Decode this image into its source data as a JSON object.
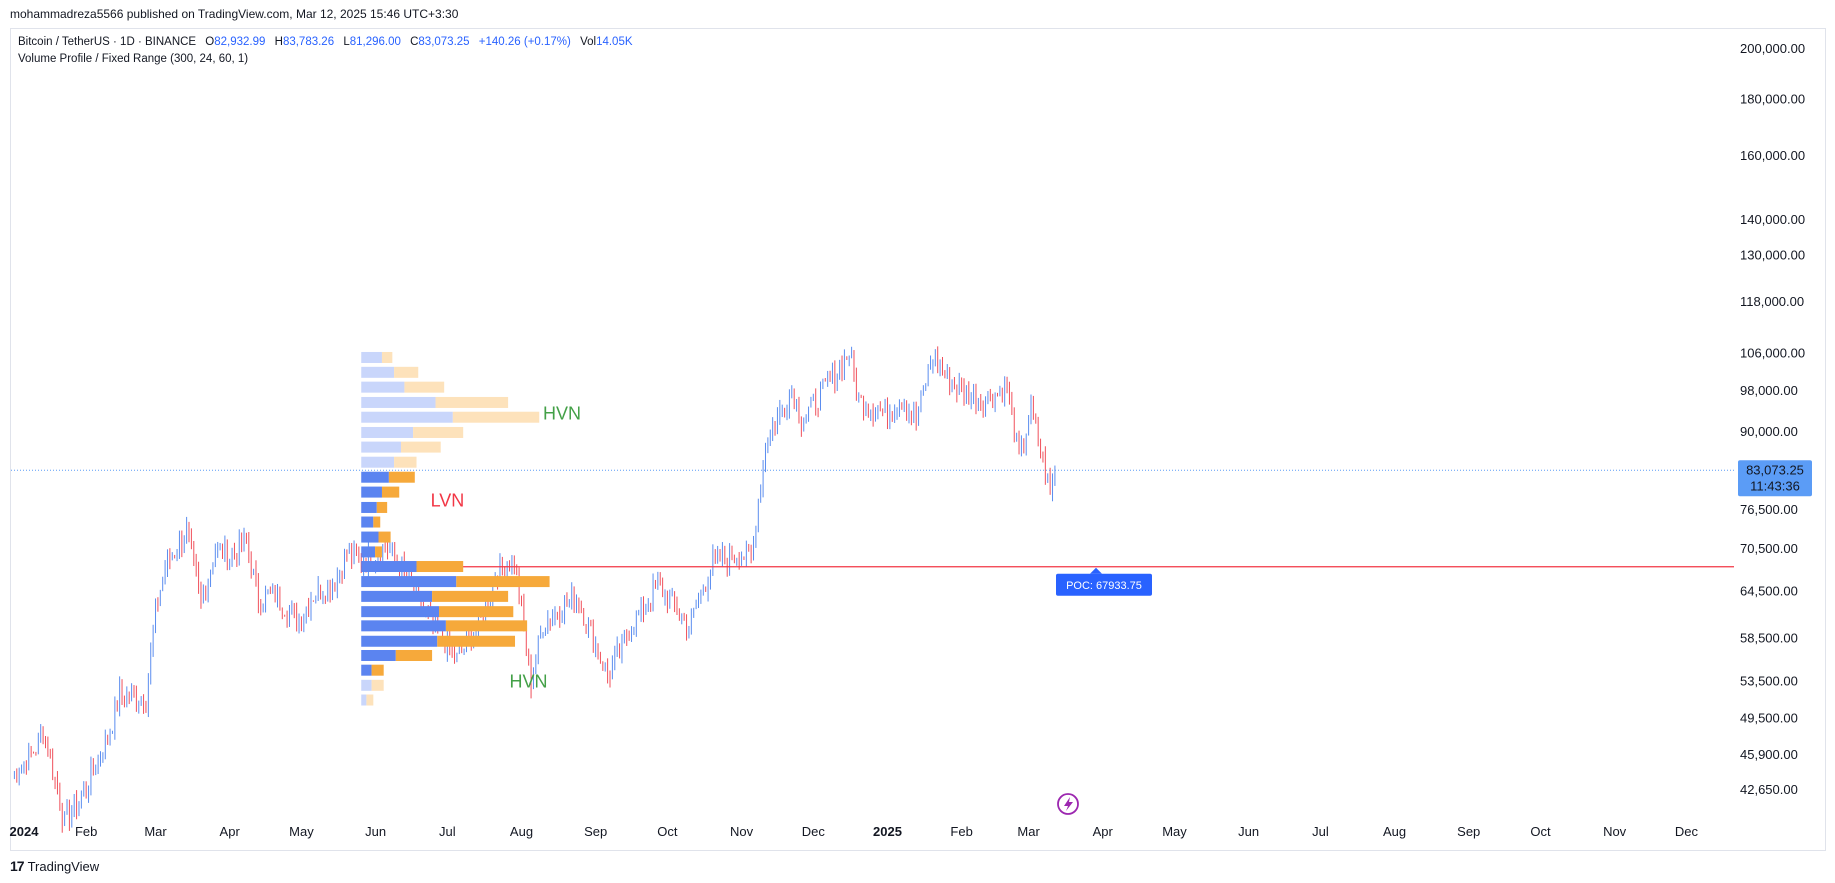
{
  "publish_line": "mohammadreza5566 published on TradingView.com, Mar 12, 2025 15:46 UTC+3:30",
  "legend": {
    "symbol": "Bitcoin / TetherUS · 1D · BINANCE",
    "open_key": "O",
    "open": "82,932.99",
    "high_key": "H",
    "high": "83,783.26",
    "low_key": "L",
    "low": "81,296.00",
    "close_key": "C",
    "close": "83,073.25",
    "change": "+140.26 (+0.17%)",
    "vol_key": "Vol",
    "vol": "14.05K",
    "indicator": "Volume Profile / Fixed Range (300, 24, 60, 1)"
  },
  "footer": {
    "logo": "17",
    "brand": "TradingView"
  },
  "colors": {
    "up": "#5b8def",
    "down": "#f0505b",
    "vp_up": "#5b84f0",
    "vp_down": "#f6a93b",
    "vp_up_light": "#c9d6fb",
    "vp_down_light": "#fde2bb",
    "poc": "#f23645",
    "price_tag": "#5b9cf6",
    "hvn": "#43a047",
    "lvn": "#f23645",
    "grid": "#e0e3eb"
  },
  "chart_data": {
    "type": "candlestick",
    "symbol": "BTCUSDT",
    "timeframe": "1D",
    "scale": "log",
    "y_ticks": [
      "200,000.00",
      "180,000.00",
      "160,000.00",
      "140,000.00",
      "130,000.00",
      "118,000.00",
      "106,000.00",
      "98,000.00",
      "90,000.00",
      "76,500.00",
      "70,500.00",
      "64,500.00",
      "58,500.00",
      "53,500.00",
      "49,500.00",
      "45,900.00",
      "42,650.00"
    ],
    "y_tick_values": [
      200000,
      180000,
      160000,
      140000,
      130000,
      118000,
      106000,
      98000,
      90000,
      76500,
      70500,
      64500,
      58500,
      53500,
      49500,
      45900,
      42650
    ],
    "x_ticks": [
      "2024",
      "Feb",
      "Mar",
      "Apr",
      "May",
      "Jun",
      "Jul",
      "Aug",
      "Sep",
      "Oct",
      "Nov",
      "Dec",
      "2025",
      "Feb",
      "Mar",
      "Apr",
      "May",
      "Jun",
      "Jul",
      "Aug",
      "Sep",
      "Oct",
      "Nov",
      "Dec"
    ],
    "bold_x_ticks": [
      "2024",
      "2025"
    ],
    "current_price": {
      "value": 83073.25,
      "label": "83,073.25",
      "countdown": "11:43:36"
    },
    "poc": {
      "value": 67933.75,
      "label": "POC: 67933.75"
    },
    "price_path": [
      [
        "2024-01-01",
        44000
      ],
      [
        "2024-01-11",
        46500
      ],
      [
        "2024-01-14",
        48500
      ],
      [
        "2024-01-23",
        39800
      ],
      [
        "2024-02-01",
        42800
      ],
      [
        "2024-02-10",
        47500
      ],
      [
        "2024-02-15",
        52000
      ],
      [
        "2024-02-26",
        51500
      ],
      [
        "2024-03-01",
        62000
      ],
      [
        "2024-03-05",
        68000
      ],
      [
        "2024-03-14",
        73000
      ],
      [
        "2024-03-20",
        63000
      ],
      [
        "2024-03-26",
        70500
      ],
      [
        "2024-04-01",
        69500
      ],
      [
        "2024-04-08",
        71500
      ],
      [
        "2024-04-13",
        63500
      ],
      [
        "2024-04-20",
        64000
      ],
      [
        "2024-04-30",
        60500
      ],
      [
        "2024-05-05",
        63800
      ],
      [
        "2024-05-15",
        66000
      ],
      [
        "2024-05-20",
        70000
      ],
      [
        "2024-05-26",
        68500
      ],
      [
        "2024-06-05",
        71000
      ],
      [
        "2024-06-12",
        67500
      ],
      [
        "2024-06-24",
        60500
      ],
      [
        "2024-07-05",
        56000
      ],
      [
        "2024-07-14",
        60000
      ],
      [
        "2024-07-22",
        67500
      ],
      [
        "2024-07-29",
        69000
      ],
      [
        "2024-08-05",
        53500
      ],
      [
        "2024-08-10",
        60500
      ],
      [
        "2024-08-24",
        64000
      ],
      [
        "2024-08-31",
        58500
      ],
      [
        "2024-09-06",
        54000
      ],
      [
        "2024-09-15",
        59500
      ],
      [
        "2024-09-27",
        65500
      ],
      [
        "2024-10-10",
        60000
      ],
      [
        "2024-10-20",
        68500
      ],
      [
        "2024-10-31",
        70000
      ],
      [
        "2024-11-05",
        69000
      ],
      [
        "2024-11-11",
        88000
      ],
      [
        "2024-11-22",
        98500
      ],
      [
        "2024-11-26",
        92000
      ],
      [
        "2024-12-05",
        98000
      ],
      [
        "2024-12-16",
        106000
      ],
      [
        "2024-12-20",
        96000
      ],
      [
        "2024-12-31",
        93500
      ],
      [
        "2025-01-07",
        97000
      ],
      [
        "2025-01-13",
        92000
      ],
      [
        "2025-01-20",
        106000
      ],
      [
        "2025-01-27",
        100000
      ],
      [
        "2025-02-03",
        97500
      ],
      [
        "2025-02-10",
        96500
      ],
      [
        "2025-02-20",
        98500
      ],
      [
        "2025-02-25",
        85000
      ],
      [
        "2025-03-02",
        94000
      ],
      [
        "2025-03-05",
        88500
      ],
      [
        "2025-03-10",
        79000
      ],
      [
        "2025-03-12",
        83073
      ]
    ],
    "volume_profile": {
      "range": "Fixed Range (300, 24, 60, 1)",
      "rows": [
        {
          "price": 105000,
          "up": 0.12,
          "down": 0.06,
          "va": false
        },
        {
          "price": 101800,
          "up": 0.19,
          "down": 0.14,
          "va": false
        },
        {
          "price": 98700,
          "up": 0.25,
          "down": 0.23,
          "va": false
        },
        {
          "price": 95600,
          "up": 0.43,
          "down": 0.42,
          "va": false
        },
        {
          "price": 92700,
          "up": 0.53,
          "down": 0.5,
          "va": false
        },
        {
          "price": 89800,
          "up": 0.3,
          "down": 0.29,
          "va": false
        },
        {
          "price": 87100,
          "up": 0.23,
          "down": 0.23,
          "va": false
        },
        {
          "price": 84400,
          "up": 0.19,
          "down": 0.13,
          "va": false
        },
        {
          "price": 81800,
          "up": 0.16,
          "down": 0.15,
          "va": true
        },
        {
          "price": 79300,
          "up": 0.12,
          "down": 0.1,
          "va": true
        },
        {
          "price": 76800,
          "up": 0.09,
          "down": 0.06,
          "va": true
        },
        {
          "price": 74500,
          "up": 0.07,
          "down": 0.04,
          "va": true
        },
        {
          "price": 72200,
          "up": 0.1,
          "down": 0.07,
          "va": true
        },
        {
          "price": 70000,
          "up": 0.08,
          "down": 0.04,
          "va": true
        },
        {
          "price": 67900,
          "up": 0.32,
          "down": 0.27,
          "va": true
        },
        {
          "price": 65800,
          "up": 0.55,
          "down": 0.54,
          "va": true
        },
        {
          "price": 63800,
          "up": 0.41,
          "down": 0.44,
          "va": true
        },
        {
          "price": 61800,
          "up": 0.45,
          "down": 0.43,
          "va": true
        },
        {
          "price": 60000,
          "up": 0.49,
          "down": 0.47,
          "va": true
        },
        {
          "price": 58100,
          "up": 0.44,
          "down": 0.45,
          "va": true
        },
        {
          "price": 56400,
          "up": 0.2,
          "down": 0.21,
          "va": true
        },
        {
          "price": 54700,
          "up": 0.06,
          "down": 0.07,
          "va": true
        },
        {
          "price": 53000,
          "up": 0.06,
          "down": 0.07,
          "va": false
        },
        {
          "price": 51400,
          "up": 0.03,
          "down": 0.04,
          "va": false
        }
      ]
    },
    "annotations": [
      {
        "text": "HVN",
        "price": 93500,
        "date": "2024-08-10",
        "color": "#43a047"
      },
      {
        "text": "LVN",
        "price": 78000,
        "date": "2024-06-24",
        "color": "#f23645"
      },
      {
        "text": "HVN",
        "price": 53500,
        "date": "2024-07-27",
        "color": "#43a047"
      }
    ]
  }
}
